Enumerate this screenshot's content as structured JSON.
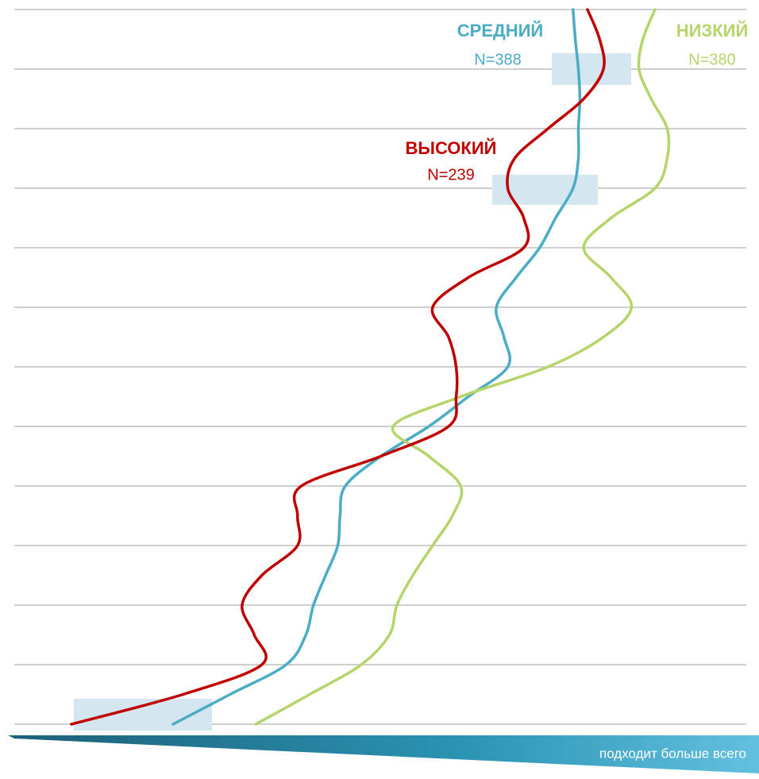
{
  "chart_data": {
    "type": "line",
    "orientation": "vertical",
    "categories": [
      null,
      null,
      null,
      null,
      null,
      null,
      null,
      null,
      null,
      null,
      null,
      null,
      null,
      null,
      null,
      null,
      null,
      null,
      null,
      null,
      null,
      null,
      null,
      null,
      null
    ],
    "xlim": [
      0,
      100
    ],
    "grid": true,
    "axis_label": "подходит больше всего",
    "series": [
      {
        "name": "СРЕДНИЙ",
        "n": "N=388",
        "color": "#4bacc6",
        "values": [
          75.5,
          75.8,
          76.2,
          76.4,
          76.2,
          76.2,
          75.5,
          73.2,
          71.1,
          68.0,
          65.4,
          66.4,
          66.9,
          61.7,
          56.5,
          50.2,
          45.5,
          44.8,
          44.5,
          42.9,
          41.3,
          40.3,
          37.7,
          30.3,
          22.8
        ]
      },
      {
        "name": "НИЗКИЙ",
        "n": "N=380",
        "color": "#b5d56a",
        "values": [
          86.3,
          84.7,
          84.2,
          85.8,
          87.9,
          87.9,
          86.3,
          80.5,
          76.9,
          80.5,
          83.2,
          79.5,
          72.2,
          60.7,
          51.8,
          56.5,
          60.7,
          59.6,
          57.0,
          54.4,
          52.3,
          51.3,
          47.6,
          40.8,
          33.7
        ]
      },
      {
        "name": "ВЫСОКИЙ",
        "n": "N=239",
        "color": "#c00000",
        "values": [
          77.4,
          79.0,
          79.5,
          76.9,
          72.2,
          67.8,
          66.9,
          69.0,
          69.0,
          61.7,
          57.0,
          59.1,
          60.1,
          60.1,
          59.1,
          50.2,
          39.7,
          39.2,
          39.2,
          34.5,
          31.9,
          33.5,
          34.5,
          24.1,
          9.4
        ]
      }
    ]
  }
}
